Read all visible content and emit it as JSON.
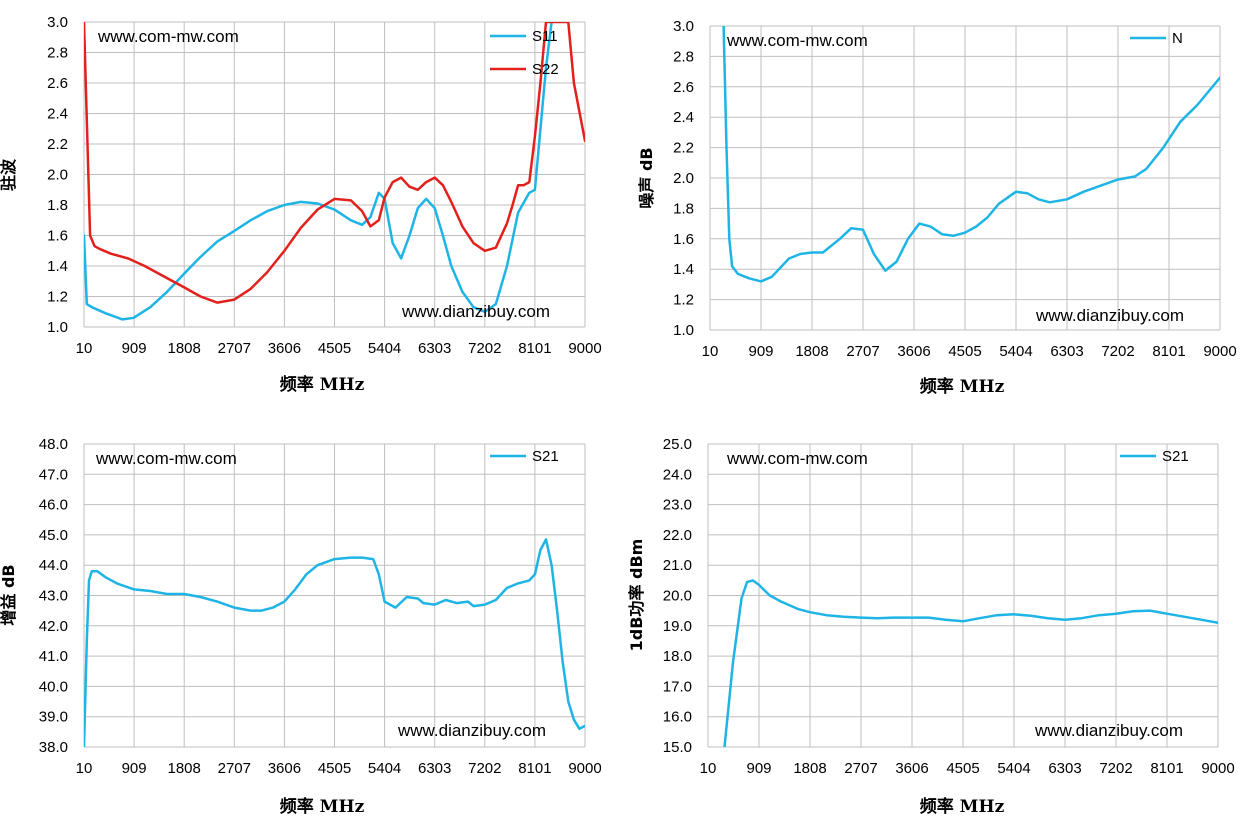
{
  "chart_data": [
    {
      "type": "line",
      "ylabel": "驻波",
      "xlabel": "频率 MHz",
      "xlim": [
        10,
        9000
      ],
      "ylim": [
        1.0,
        3.0
      ],
      "xticks": [
        "10",
        "909",
        "1808",
        "2707",
        "3606",
        "4505",
        "5404",
        "6303",
        "7202",
        "8101",
        "9000"
      ],
      "yticks": [
        "1.0",
        "1.2",
        "1.4",
        "1.6",
        "1.8",
        "2.0",
        "2.2",
        "2.4",
        "2.6",
        "2.8",
        "3.0"
      ],
      "watermark_top": "www.com-mw.com",
      "watermark_bottom": "www.dianzibuy.com",
      "legend_position": "top-right",
      "series": [
        {
          "name": "S11",
          "color": "#1fb4e6",
          "x": [
            10,
            60,
            150,
            400,
            700,
            900,
            1200,
            1500,
            1808,
            2100,
            2400,
            2707,
            3000,
            3300,
            3606,
            3900,
            4200,
            4505,
            4800,
            5000,
            5150,
            5300,
            5404,
            5550,
            5700,
            5850,
            6000,
            6150,
            6303,
            6450,
            6600,
            6800,
            7000,
            7202,
            7400,
            7600,
            7800,
            8000,
            8101,
            8300,
            8400
          ],
          "y": [
            1.6,
            1.15,
            1.13,
            1.09,
            1.05,
            1.06,
            1.13,
            1.23,
            1.35,
            1.46,
            1.56,
            1.63,
            1.7,
            1.76,
            1.8,
            1.82,
            1.81,
            1.77,
            1.7,
            1.67,
            1.72,
            1.88,
            1.84,
            1.55,
            1.45,
            1.6,
            1.78,
            1.84,
            1.78,
            1.6,
            1.4,
            1.23,
            1.13,
            1.1,
            1.15,
            1.4,
            1.75,
            1.88,
            1.9,
            2.7,
            3.0
          ]
        },
        {
          "name": "S22",
          "color": "#e3211c",
          "x": [
            10,
            120,
            200,
            300,
            500,
            800,
            1100,
            1400,
            1808,
            2100,
            2400,
            2707,
            3000,
            3300,
            3606,
            3900,
            4200,
            4505,
            4800,
            5000,
            5150,
            5300,
            5404,
            5550,
            5700,
            5850,
            6000,
            6150,
            6303,
            6450,
            6600,
            6800,
            7000,
            7202,
            7400,
            7600,
            7700,
            7800,
            7900,
            8000,
            8101,
            8200,
            8300,
            8500,
            8700,
            8800,
            9000
          ],
          "y": [
            3.0,
            1.6,
            1.53,
            1.51,
            1.48,
            1.45,
            1.4,
            1.34,
            1.26,
            1.2,
            1.16,
            1.18,
            1.25,
            1.36,
            1.5,
            1.65,
            1.77,
            1.84,
            1.83,
            1.76,
            1.66,
            1.7,
            1.85,
            1.95,
            1.98,
            1.92,
            1.9,
            1.95,
            1.98,
            1.93,
            1.82,
            1.66,
            1.55,
            1.5,
            1.52,
            1.68,
            1.8,
            1.93,
            1.93,
            1.95,
            2.25,
            2.6,
            3.0,
            3.0,
            3.0,
            2.6,
            2.22
          ]
        }
      ]
    },
    {
      "type": "line",
      "ylabel": "噪声 dB",
      "xlabel": "频率 MHz",
      "xlim": [
        10,
        9000
      ],
      "ylim": [
        1.0,
        3.0
      ],
      "xticks": [
        "10",
        "909",
        "1808",
        "2707",
        "3606",
        "4505",
        "5404",
        "6303",
        "7202",
        "8101",
        "9000"
      ],
      "yticks": [
        "1.0",
        "1.2",
        "1.4",
        "1.6",
        "1.8",
        "2.0",
        "2.2",
        "2.4",
        "2.6",
        "2.8",
        "3.0"
      ],
      "watermark_top": "www.com-mw.com",
      "watermark_bottom": "www.dianzibuy.com",
      "legend_position": "top-right",
      "series": [
        {
          "name": "N",
          "color": "#1fb4e6",
          "x": [
            250,
            300,
            350,
            400,
            500,
            700,
            909,
            1100,
            1400,
            1600,
            1808,
            2000,
            2300,
            2500,
            2707,
            2900,
            3100,
            3300,
            3500,
            3700,
            3900,
            4100,
            4300,
            4505,
            4700,
            4900,
            5100,
            5404,
            5600,
            5800,
            6000,
            6303,
            6600,
            6900,
            7202,
            7500,
            7700,
            8000,
            8300,
            8600,
            9000
          ],
          "y": [
            3.0,
            2.2,
            1.6,
            1.42,
            1.37,
            1.34,
            1.32,
            1.35,
            1.47,
            1.5,
            1.51,
            1.51,
            1.6,
            1.67,
            1.66,
            1.5,
            1.39,
            1.45,
            1.6,
            1.7,
            1.68,
            1.63,
            1.62,
            1.64,
            1.68,
            1.74,
            1.83,
            1.91,
            1.9,
            1.86,
            1.84,
            1.86,
            1.91,
            1.95,
            1.99,
            2.01,
            2.06,
            2.2,
            2.37,
            2.48,
            2.66
          ]
        }
      ]
    },
    {
      "type": "line",
      "ylabel": "增益 dB",
      "xlabel": "频率 MHz",
      "xlim": [
        10,
        9000
      ],
      "ylim": [
        38.0,
        48.0
      ],
      "xticks": [
        "10",
        "909",
        "1808",
        "2707",
        "3606",
        "4505",
        "5404",
        "6303",
        "7202",
        "8101",
        "9000"
      ],
      "yticks": [
        "38.0",
        "39.0",
        "40.0",
        "41.0",
        "42.0",
        "43.0",
        "44.0",
        "45.0",
        "46.0",
        "47.0",
        "48.0"
      ],
      "watermark_top": "www.com-mw.com",
      "watermark_bottom": "www.dianzibuy.com",
      "legend_position": "top-right",
      "series": [
        {
          "name": "S21",
          "color": "#1fb4e6",
          "x": [
            10,
            60,
            100,
            150,
            250,
            400,
            600,
            909,
            1200,
            1500,
            1808,
            2100,
            2400,
            2707,
            3000,
            3200,
            3400,
            3606,
            3800,
            4000,
            4200,
            4505,
            4800,
            5000,
            5200,
            5300,
            5404,
            5600,
            5800,
            6000,
            6100,
            6303,
            6500,
            6700,
            6900,
            7000,
            7202,
            7400,
            7600,
            7800,
            8000,
            8101,
            8200,
            8300,
            8400,
            8500,
            8600,
            8700,
            8800,
            8900,
            9000
          ],
          "y": [
            38.0,
            41.5,
            43.5,
            43.8,
            43.8,
            43.6,
            43.4,
            43.2,
            43.15,
            43.05,
            43.05,
            42.95,
            42.8,
            42.6,
            42.5,
            42.5,
            42.6,
            42.8,
            43.2,
            43.7,
            44.0,
            44.2,
            44.25,
            44.25,
            44.2,
            43.7,
            42.8,
            42.6,
            42.95,
            42.9,
            42.75,
            42.7,
            42.85,
            42.75,
            42.8,
            42.65,
            42.7,
            42.85,
            43.25,
            43.4,
            43.5,
            43.7,
            44.5,
            44.85,
            44.0,
            42.5,
            40.8,
            39.5,
            38.9,
            38.6,
            38.7
          ]
        }
      ]
    },
    {
      "type": "line",
      "ylabel": "1dB功率 dBm",
      "xlabel": "频率 MHz",
      "xlim": [
        10,
        9000
      ],
      "ylim": [
        15.0,
        25.0
      ],
      "xticks": [
        "10",
        "909",
        "1808",
        "2707",
        "3606",
        "4505",
        "5404",
        "6303",
        "7202",
        "8101",
        "9000"
      ],
      "yticks": [
        "15.0",
        "16.0",
        "17.0",
        "18.0",
        "19.0",
        "20.0",
        "21.0",
        "22.0",
        "23.0",
        "24.0",
        "25.0"
      ],
      "watermark_top": "www.com-mw.com",
      "watermark_bottom": "www.dianzibuy.com",
      "legend_position": "top-right",
      "series": [
        {
          "name": "S21",
          "color": "#1fb4e6",
          "x": [
            300,
            450,
            600,
            700,
            800,
            909,
            1100,
            1300,
            1600,
            1808,
            2100,
            2400,
            2707,
            3000,
            3300,
            3606,
            3900,
            4200,
            4505,
            4800,
            5100,
            5404,
            5700,
            6000,
            6303,
            6600,
            6900,
            7202,
            7500,
            7800,
            8101,
            8400,
            8700,
            9000
          ],
          "y": [
            15.0,
            17.8,
            19.9,
            20.45,
            20.5,
            20.35,
            20.0,
            19.8,
            19.55,
            19.45,
            19.35,
            19.3,
            19.27,
            19.25,
            19.27,
            19.27,
            19.27,
            19.2,
            19.15,
            19.25,
            19.35,
            19.38,
            19.33,
            19.25,
            19.2,
            19.25,
            19.35,
            19.4,
            19.48,
            19.5,
            19.4,
            19.3,
            19.2,
            19.1
          ]
        }
      ]
    }
  ]
}
